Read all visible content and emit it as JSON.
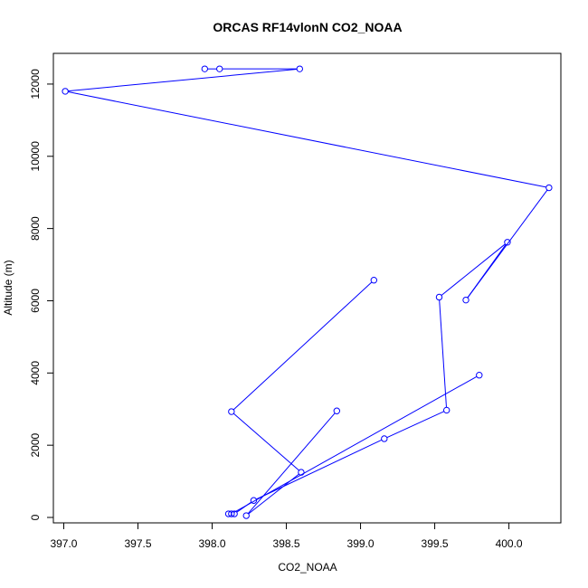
{
  "chart_data": {
    "type": "line",
    "title": "ORCAS RF14vlonN CO2_NOAA",
    "xlabel": "CO2_NOAA",
    "ylabel": "Altitude (m)",
    "xlim": [
      396.93,
      400.35
    ],
    "ylim": [
      -150,
      12850
    ],
    "x_ticks": [
      397.0,
      397.5,
      398.0,
      398.5,
      399.0,
      399.5,
      400.0
    ],
    "x_tick_labels": [
      "397.0",
      "397.5",
      "398.0",
      "398.5",
      "399.0",
      "399.5",
      "400.0"
    ],
    "y_ticks": [
      0,
      2000,
      4000,
      6000,
      8000,
      10000,
      12000
    ],
    "y_tick_labels": [
      "0",
      "2000",
      "4000",
      "6000",
      "8000",
      "10000",
      "12000"
    ],
    "grid": false,
    "series_color": "#0000ff",
    "series": [
      {
        "x": [
          397.95,
          398.05,
          398.59,
          397.01,
          400.27,
          399.71,
          399.99,
          399.53,
          399.58,
          399.16,
          398.28,
          398.15,
          398.11,
          398.13,
          399.8
        ],
        "y": [
          12420,
          12420,
          12420,
          11800,
          9130,
          6020,
          7620,
          6100,
          2970,
          2180,
          470,
          100,
          100,
          100,
          3940
        ]
      },
      {
        "x": [
          399.09,
          398.13,
          398.6,
          398.23,
          398.84
        ],
        "y": [
          6570,
          2930,
          1250,
          50,
          2950
        ]
      }
    ]
  }
}
